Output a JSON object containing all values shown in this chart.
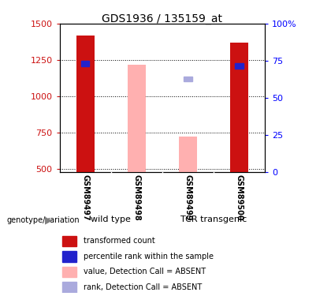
{
  "title": "GDS1936 / 135159_at",
  "samples": [
    "GSM89497",
    "GSM89498",
    "GSM89499",
    "GSM89500"
  ],
  "bar_data": [
    {
      "sample": "GSM89497",
      "value": 1420,
      "rank": 1225,
      "absent_value": null,
      "absent_rank": null
    },
    {
      "sample": "GSM89498",
      "value": null,
      "rank": null,
      "absent_value": 1215,
      "absent_rank": null
    },
    {
      "sample": "GSM89499",
      "value": null,
      "rank": null,
      "absent_value": 720,
      "absent_rank": 1120
    },
    {
      "sample": "GSM89500",
      "value": 1370,
      "rank": 1210,
      "absent_value": null,
      "absent_rank": null
    }
  ],
  "ylim": [
    480,
    1500
  ],
  "yticks": [
    500,
    750,
    1000,
    1250,
    1500
  ],
  "right_yticks": [
    0,
    25,
    50,
    75,
    100
  ],
  "bar_width": 0.35,
  "red_color": "#cc1111",
  "pink_color": "#ffb0b0",
  "blue_color": "#2222cc",
  "lightblue_color": "#aaaadd",
  "tick_label_area_color": "#cccccc",
  "group_label_color": "#90ee90",
  "legend_items": [
    {
      "label": "transformed count",
      "color": "#cc1111"
    },
    {
      "label": "percentile rank within the sample",
      "color": "#2222cc"
    },
    {
      "label": "value, Detection Call = ABSENT",
      "color": "#ffb0b0"
    },
    {
      "label": "rank, Detection Call = ABSENT",
      "color": "#aaaadd"
    }
  ]
}
